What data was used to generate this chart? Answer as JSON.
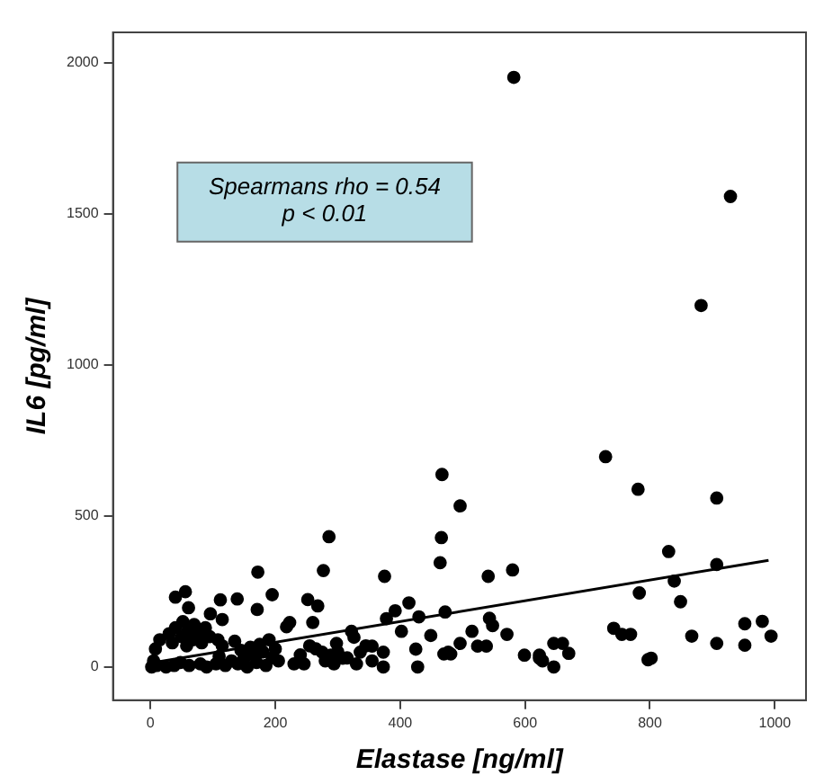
{
  "chart_data": {
    "type": "scatter",
    "xlabel": "Elastase [ng/ml]",
    "ylabel": "IL6 [pg/ml]",
    "annotations": [
      "Spearmans rho = 0.54",
      "p < 0.01"
    ],
    "xlim": [
      -60,
      1050
    ],
    "ylim": [
      -110,
      2100
    ],
    "xticks": [
      0,
      200,
      400,
      600,
      800,
      1000
    ],
    "yticks": [
      0,
      500,
      1000,
      1500,
      2000
    ],
    "grid": false,
    "legend": false,
    "marker": "circle",
    "series": [
      {
        "color": "#000000",
        "x": [
          582,
          929,
          882,
          729,
          467,
          781,
          907,
          496,
          286,
          466,
          830,
          464,
          907,
          580,
          277,
          172,
          375,
          541,
          839,
          783,
          849,
          195,
          56,
          40,
          112,
          139,
          414,
          252,
          268,
          171,
          61,
          472,
          430,
          543,
          548,
          392,
          378,
          96,
          115,
          223,
          218,
          260,
          867,
          994,
          952,
          980,
          907,
          952,
          742,
          755,
          769,
          571,
          515,
          524,
          538,
          496,
          477,
          449,
          402,
          425,
          428,
          373,
          373,
          355,
          336,
          326,
          322,
          298,
          289,
          294,
          308,
          275,
          246,
          470,
          481,
          599,
          623,
          628,
          646,
          660,
          670,
          646,
          623,
          797,
          802,
          2,
          5,
          8,
          10,
          15,
          25,
          30,
          35,
          38,
          40,
          48,
          50,
          52,
          58,
          60,
          62,
          68,
          70,
          78,
          80,
          82,
          88,
          90,
          95,
          105,
          108,
          110,
          115,
          120,
          130,
          135,
          140,
          145,
          150,
          155,
          160,
          165,
          170,
          175,
          180,
          185,
          190,
          195,
          200,
          205,
          230,
          240,
          255,
          265,
          280,
          300,
          315,
          330,
          345,
          355
        ],
        "values": [
          1951,
          1557,
          1196,
          696,
          637,
          588,
          559,
          533,
          431,
          428,
          382,
          345,
          339,
          321,
          319,
          314,
          300,
          300,
          284,
          245,
          216,
          239,
          249,
          231,
          222,
          225,
          212,
          223,
          202,
          190,
          196,
          182,
          166,
          161,
          137,
          186,
          160,
          176,
          157,
          147,
          133,
          147,
          102,
          102,
          143,
          151,
          78,
          72,
          128,
          108,
          108,
          108,
          118,
          69,
          69,
          78,
          49,
          104,
          118,
          59,
          0,
          49,
          0,
          69,
          49,
          98,
          118,
          78,
          39,
          10,
          29,
          49,
          10,
          43,
          43,
          39,
          29,
          20,
          78,
          78,
          45,
          0,
          39,
          24,
          29,
          0,
          20,
          60,
          5,
          90,
          0,
          110,
          80,
          5,
          130,
          15,
          100,
          150,
          70,
          120,
          5,
          90,
          140,
          110,
          10,
          80,
          130,
          0,
          100,
          10,
          90,
          35,
          70,
          5,
          20,
          85,
          10,
          55,
          30,
          0,
          65,
          40,
          15,
          75,
          50,
          5,
          90,
          30,
          60,
          20,
          10,
          40,
          70,
          60,
          20,
          50,
          30,
          10,
          70,
          20
        ]
      },
      {
        "type": "line",
        "color": "#000000",
        "marker": "none",
        "x": [
          0,
          990
        ],
        "values": [
          13,
          353
        ]
      }
    ]
  }
}
